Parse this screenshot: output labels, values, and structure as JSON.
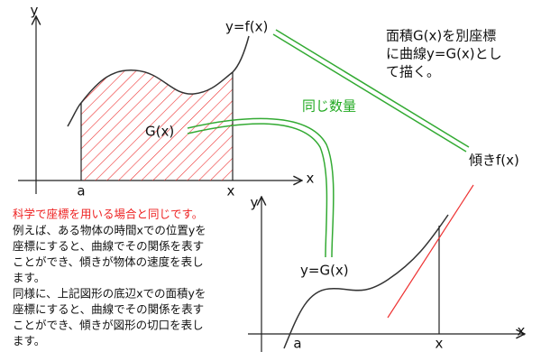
{
  "top_graph": {
    "y_axis": "y",
    "x_axis": "x",
    "a_label": "a",
    "x_label": "x",
    "curve_label": "y=f(x)",
    "area_label": "G(x)"
  },
  "bridge_label": "同じ数量",
  "note": [
    "面積G(x)を別座標",
    "に曲線y=G(x)とし",
    "て描く。"
  ],
  "slope_label": "傾きf(x)",
  "bottom_graph": {
    "y_axis": "y",
    "x_axis": "x",
    "a_label": "a",
    "x_label": "x",
    "curve_label": "y=G(x)"
  },
  "explanation": {
    "heading": "科学で座標を用いる場合と同じです。",
    "lines": [
      "例えば、ある物体の時間xでの位置yを",
      "座標にすると、曲線でその関係を表す",
      "ことができ、傾きが物体の速度を表し",
      "ます。",
      "同様に、上記図形の底辺xでの面積yを",
      "座標にすると、曲線でその関係を表す",
      "ことができ、傾きが図形の切口を表し",
      "ます。"
    ]
  }
}
